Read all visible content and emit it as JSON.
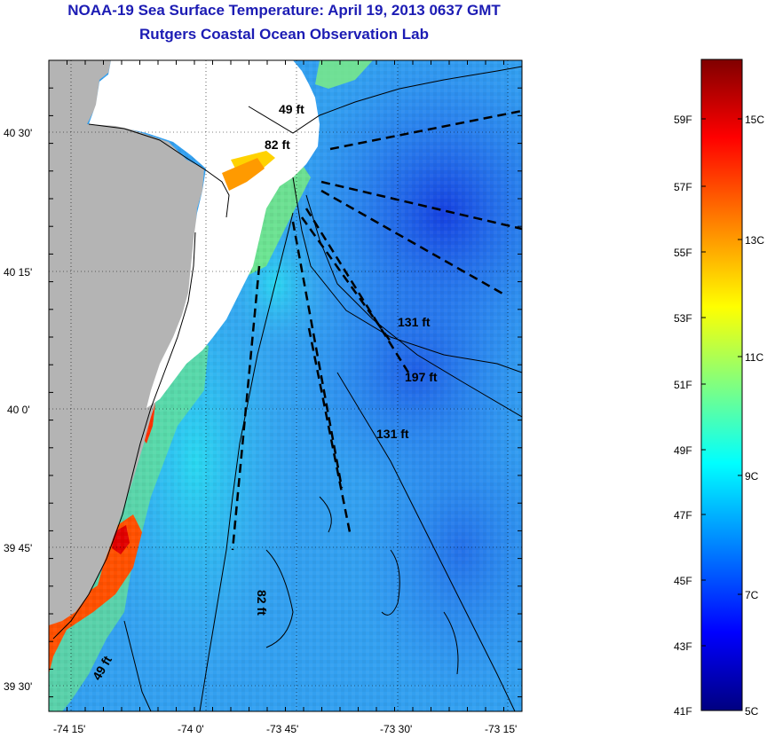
{
  "title": "NOAA-19 Sea Surface Temperature:  April 19, 2013 0637 GMT",
  "subtitle": "Rutgers Coastal Ocean Observation Lab",
  "map": {
    "lon_ticks": [
      "-74 15'",
      "-74 0'",
      "-73 45'",
      "-73 30'",
      "-73 15'"
    ],
    "lat_ticks": [
      "40 30'",
      "40 15'",
      "40 0'",
      "39 45'",
      "39 30'"
    ],
    "land_color": "#b4b4b4",
    "cloud_mask_color": "#ffffff",
    "depth_labels": [
      "49 ft",
      "82 ft",
      "131 ft",
      "197 ft",
      "131 ft",
      "82 ft",
      "49 ft"
    ]
  },
  "colorbar": {
    "fahrenheit_labels": [
      "59F",
      "57F",
      "55F",
      "53F",
      "51F",
      "49F",
      "47F",
      "45F",
      "43F",
      "41F"
    ],
    "celsius_labels": [
      "15C",
      "13C",
      "11C",
      "9C",
      "7C",
      "5C"
    ],
    "stops": [
      "#000080",
      "#0000ff",
      "#0080ff",
      "#00ffff",
      "#80ff80",
      "#ffff00",
      "#ff8000",
      "#ff0000",
      "#800000"
    ]
  }
}
